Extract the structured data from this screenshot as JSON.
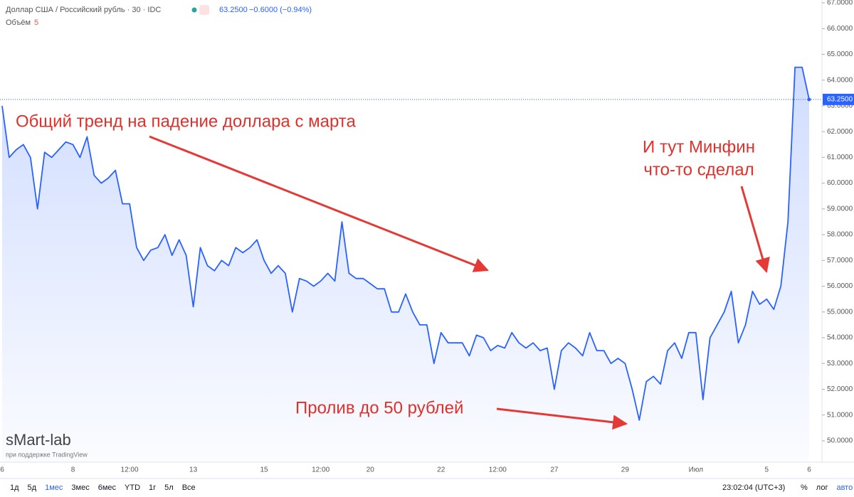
{
  "chart_data": {
    "type": "line",
    "title": "Доллар США / Российский рубль · 30 · IDC",
    "price_label": "63.2500",
    "change_label": "−0.6000 (−0.94%)",
    "volume_label": "Объём",
    "volume_value": "5",
    "annotations": [
      "Общий тренд на падение доллара с марта",
      "И тут Минфин",
      "что-то сделал",
      "Пролив до 50 рублей"
    ],
    "categories": [
      "6",
      null,
      null,
      null,
      null,
      null,
      null,
      null,
      null,
      null,
      "8",
      null,
      null,
      null,
      null,
      null,
      null,
      null,
      "12:00",
      null,
      null,
      null,
      null,
      null,
      null,
      null,
      null,
      "13",
      null,
      null,
      null,
      null,
      null,
      null,
      null,
      null,
      null,
      "15",
      null,
      null,
      null,
      null,
      null,
      null,
      null,
      "12:00",
      null,
      null,
      null,
      null,
      null,
      null,
      "20",
      null,
      null,
      null,
      null,
      null,
      null,
      null,
      null,
      null,
      "22",
      null,
      null,
      null,
      null,
      null,
      null,
      null,
      "12:00",
      null,
      null,
      null,
      null,
      null,
      null,
      null,
      "27",
      null,
      null,
      null,
      null,
      null,
      null,
      null,
      null,
      null,
      "29",
      null,
      null,
      null,
      null,
      null,
      null,
      null,
      null,
      null,
      "Июл",
      null,
      null,
      null,
      null,
      null,
      null,
      null,
      null,
      null,
      "5",
      null,
      null,
      null,
      null,
      null,
      "6"
    ],
    "series": [
      {
        "name": "USDRUB",
        "color": "#2962ff",
        "values": [
          63.0,
          61.0,
          61.3,
          61.5,
          61.0,
          59.0,
          61.2,
          61.0,
          61.3,
          61.6,
          61.5,
          61.0,
          61.8,
          60.3,
          60.0,
          60.2,
          60.5,
          59.2,
          59.2,
          57.5,
          57.0,
          57.4,
          57.5,
          58.0,
          57.2,
          57.8,
          57.2,
          55.2,
          57.5,
          56.8,
          56.6,
          57.0,
          56.8,
          57.5,
          57.3,
          57.5,
          57.8,
          57.0,
          56.5,
          56.8,
          56.5,
          55.0,
          56.3,
          56.2,
          56.0,
          56.2,
          56.5,
          56.2,
          58.5,
          56.5,
          56.3,
          56.3,
          56.1,
          55.9,
          55.9,
          55.0,
          55.0,
          55.7,
          55.0,
          54.5,
          54.5,
          53.0,
          54.2,
          53.8,
          53.8,
          53.8,
          53.3,
          54.1,
          54.0,
          53.5,
          53.7,
          53.6,
          54.2,
          53.8,
          53.6,
          53.8,
          53.5,
          53.6,
          52.0,
          53.5,
          53.8,
          53.6,
          53.3,
          54.2,
          53.5,
          53.5,
          53.0,
          53.2,
          53.0,
          52.0,
          50.8,
          52.3,
          52.5,
          52.2,
          53.5,
          53.8,
          53.2,
          54.2,
          54.2,
          51.6,
          54.0,
          54.5,
          55.0,
          55.8,
          53.8,
          54.5,
          55.8,
          55.3,
          55.5,
          55.1,
          56.0,
          58.5,
          64.5,
          64.5,
          63.25
        ]
      }
    ],
    "last_value": 63.25,
    "ylim": [
      49.17,
      67.11
    ],
    "yticks": [
      {
        "value": 50,
        "label": "50.0000"
      },
      {
        "value": 51,
        "label": "51.0000"
      },
      {
        "value": 52,
        "label": "52.0000"
      },
      {
        "value": 53,
        "label": "53.0000"
      },
      {
        "value": 54,
        "label": "54.0000"
      },
      {
        "value": 55,
        "label": "55.0000"
      },
      {
        "value": 56,
        "label": "56.0000"
      },
      {
        "value": 57,
        "label": "57.0000"
      },
      {
        "value": 58,
        "label": "58.0000"
      },
      {
        "value": 59,
        "label": "59.0000"
      },
      {
        "value": 60,
        "label": "60.0000"
      },
      {
        "value": 61,
        "label": "61.0000"
      },
      {
        "value": 62,
        "label": "62.0000"
      },
      {
        "value": 63,
        "label": "63.0000"
      },
      {
        "value": 64,
        "label": "64.0000"
      },
      {
        "value": 65,
        "label": "65.0000"
      },
      {
        "value": 66,
        "label": "66.0000"
      },
      {
        "value": 67,
        "label": "67.0000"
      }
    ],
    "grid": false
  },
  "watermark": {
    "brand": "sMart-lab",
    "sub": "при поддержке TradingView"
  },
  "toolbar": {
    "ranges": [
      "1д",
      "5д",
      "1мес",
      "3мес",
      "6мес",
      "YTD",
      "1г",
      "5л",
      "Все"
    ],
    "clock": "23:02:04 (UTC+3)",
    "options": [
      "%",
      "лог",
      "авто"
    ]
  }
}
